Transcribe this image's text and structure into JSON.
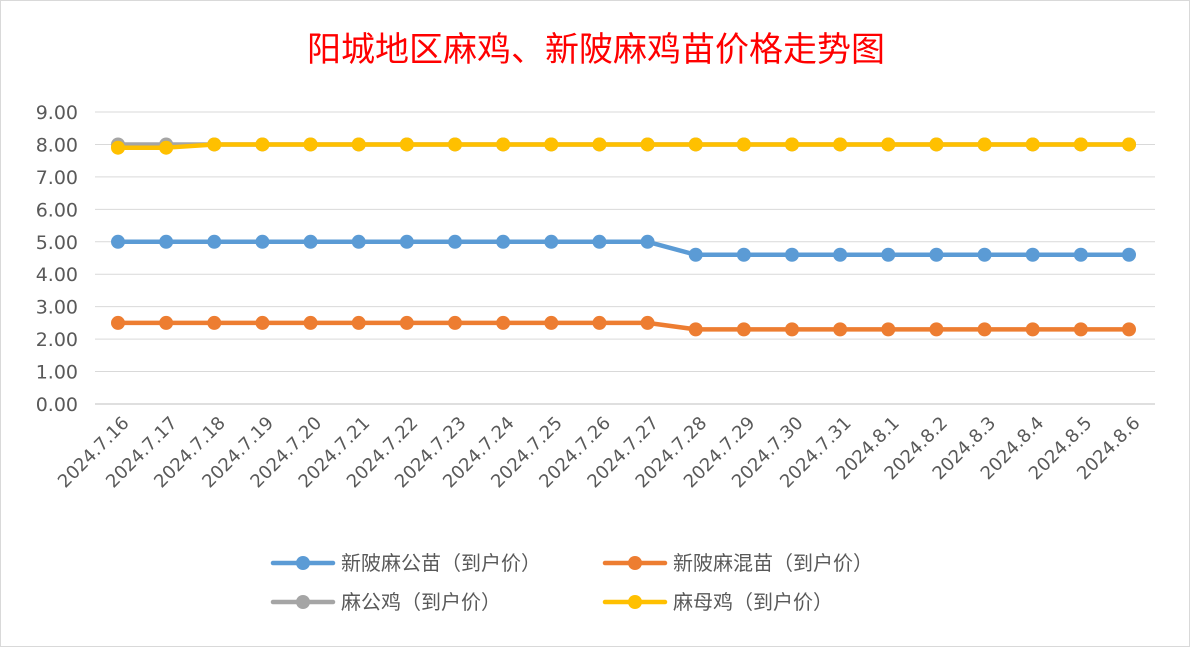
{
  "chart_data": {
    "type": "line",
    "title": "阳城地区麻鸡、新陂麻鸡苗价格走势图",
    "xlabel": "",
    "ylabel": "",
    "ylim": [
      0,
      9
    ],
    "grid": true,
    "legend_position": "bottom",
    "y_ticks": [
      "0.00",
      "1.00",
      "2.00",
      "3.00",
      "4.00",
      "5.00",
      "6.00",
      "7.00",
      "8.00",
      "9.00"
    ],
    "categories": [
      "2024.7.16",
      "2024.7.17",
      "2024.7.18",
      "2024.7.19",
      "2024.7.20",
      "2024.7.21",
      "2024.7.22",
      "2024.7.23",
      "2024.7.24",
      "2024.7.25",
      "2024.7.26",
      "2024.7.27",
      "2024.7.28",
      "2024.7.29",
      "2024.7.30",
      "2024.7.31",
      "2024.8.1",
      "2024.8.2",
      "2024.8.3",
      "2024.8.4",
      "2024.8.5",
      "2024.8.6"
    ],
    "series": [
      {
        "name": "新陂麻公苗（到户价）",
        "color": "#5b9bd5",
        "values": [
          5.0,
          5.0,
          5.0,
          5.0,
          5.0,
          5.0,
          5.0,
          5.0,
          5.0,
          5.0,
          5.0,
          5.0,
          4.6,
          4.6,
          4.6,
          4.6,
          4.6,
          4.6,
          4.6,
          4.6,
          4.6,
          4.6
        ]
      },
      {
        "name": "新陂麻混苗（到户价）",
        "color": "#ed7d31",
        "values": [
          2.5,
          2.5,
          2.5,
          2.5,
          2.5,
          2.5,
          2.5,
          2.5,
          2.5,
          2.5,
          2.5,
          2.5,
          2.3,
          2.3,
          2.3,
          2.3,
          2.3,
          2.3,
          2.3,
          2.3,
          2.3,
          2.3
        ]
      },
      {
        "name": "麻公鸡（到户价）",
        "color": "#a5a5a5",
        "values": [
          8.0,
          8.0,
          8.0,
          8.0,
          8.0,
          8.0,
          8.0,
          8.0,
          8.0,
          8.0,
          8.0,
          8.0,
          8.0,
          8.0,
          8.0,
          8.0,
          8.0,
          8.0,
          8.0,
          8.0,
          8.0,
          8.0
        ]
      },
      {
        "name": "麻母鸡（到户价）",
        "color": "#ffc000",
        "values": [
          7.9,
          7.9,
          8.0,
          8.0,
          8.0,
          8.0,
          8.0,
          8.0,
          8.0,
          8.0,
          8.0,
          8.0,
          8.0,
          8.0,
          8.0,
          8.0,
          8.0,
          8.0,
          8.0,
          8.0,
          8.0,
          8.0
        ]
      }
    ]
  }
}
